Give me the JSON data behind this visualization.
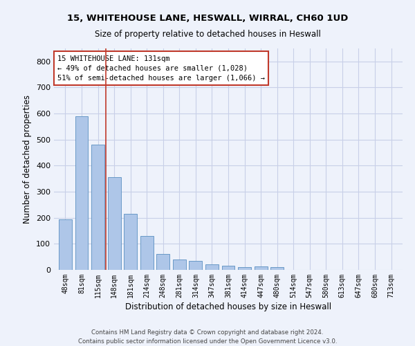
{
  "title_line1": "15, WHITEHOUSE LANE, HESWALL, WIRRAL, CH60 1UD",
  "title_line2": "Size of property relative to detached houses in Heswall",
  "xlabel": "Distribution of detached houses by size in Heswall",
  "ylabel": "Number of detached properties",
  "categories": [
    "48sqm",
    "81sqm",
    "115sqm",
    "148sqm",
    "181sqm",
    "214sqm",
    "248sqm",
    "281sqm",
    "314sqm",
    "347sqm",
    "381sqm",
    "414sqm",
    "447sqm",
    "480sqm",
    "514sqm",
    "547sqm",
    "580sqm",
    "613sqm",
    "647sqm",
    "680sqm",
    "713sqm"
  ],
  "values": [
    193,
    590,
    480,
    355,
    215,
    130,
    62,
    40,
    35,
    20,
    16,
    10,
    12,
    10,
    0,
    0,
    0,
    0,
    0,
    0,
    0
  ],
  "bar_color": "#aec6e8",
  "bar_edge_color": "#5a8fc0",
  "bar_width": 0.8,
  "vline_x": 2.5,
  "vline_color": "#c0392b",
  "annotation_text": "15 WHITEHOUSE LANE: 131sqm\n← 49% of detached houses are smaller (1,028)\n51% of semi-detached houses are larger (1,066) →",
  "annotation_box_color": "white",
  "annotation_box_edge": "#c0392b",
  "ylim": [
    0,
    850
  ],
  "yticks": [
    0,
    100,
    200,
    300,
    400,
    500,
    600,
    700,
    800
  ],
  "footnote": "Contains HM Land Registry data © Crown copyright and database right 2024.\nContains public sector information licensed under the Open Government Licence v3.0.",
  "bg_color": "#eef2fb",
  "grid_color": "#c8cfe8"
}
